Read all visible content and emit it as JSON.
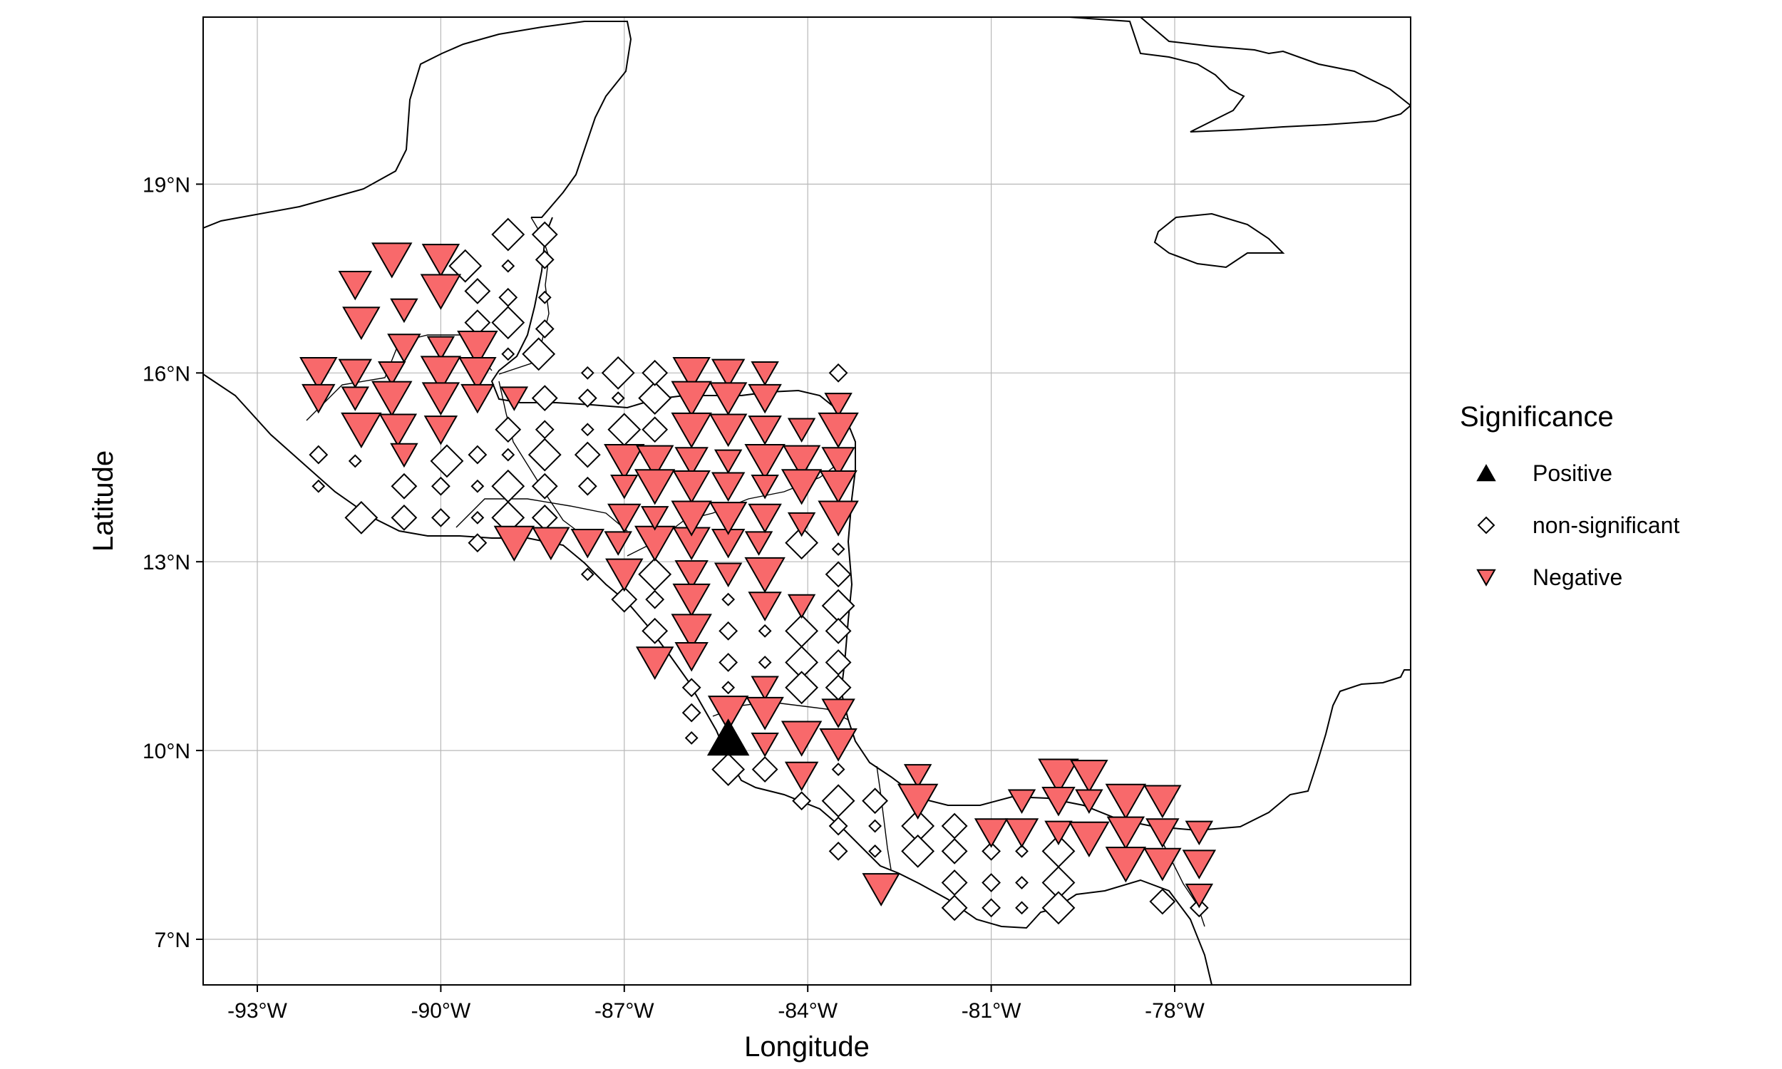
{
  "chart_data": {
    "type": "scatter",
    "map": "Central America station trends",
    "xlabel": "Longitude",
    "ylabel": "Latitude",
    "xlim": [
      -94.0,
      -74.0
    ],
    "ylim": [
      6.3,
      21.7
    ],
    "x_ticks": [
      -93,
      -90,
      -87,
      -84,
      -81,
      -78
    ],
    "x_tick_labels": [
      "-93°W",
      "-90°W",
      "-87°W",
      "-84°W",
      "-81°W",
      "-78°W"
    ],
    "y_ticks": [
      7,
      10,
      13,
      16,
      19
    ],
    "y_tick_labels": [
      "7°N",
      "10°N",
      "13°N",
      "16°N",
      "19°N"
    ],
    "grid": true,
    "legend": {
      "title": "Significance",
      "placement": "right",
      "entries": [
        {
          "key": "positive",
          "label": "Positive",
          "shape": "triangle-up",
          "color": "#000000"
        },
        {
          "key": "nonsig",
          "label": "non-significant",
          "shape": "diamond",
          "color": "#ffffff"
        },
        {
          "key": "negative",
          "label": "Negative",
          "shape": "triangle-down",
          "color": "#F8696B"
        }
      ]
    },
    "colors": {
      "negative": "#F8696B",
      "positive": "#000000",
      "nonsig": "#ffffff",
      "outline": "#000000"
    },
    "series": [
      {
        "name": "Positive",
        "points": [
          [
            -85.3,
            10.2
          ]
        ]
      },
      {
        "name": "Negative",
        "points": [
          [
            -90.8,
            17.8
          ],
          [
            -90.0,
            17.8
          ],
          [
            -91.4,
            17.4
          ],
          [
            -90.6,
            17.0
          ],
          [
            -90.0,
            17.3
          ],
          [
            -91.3,
            16.8
          ],
          [
            -90.6,
            16.4
          ],
          [
            -90.0,
            16.4
          ],
          [
            -89.4,
            16.4
          ],
          [
            -92.0,
            16.0
          ],
          [
            -91.4,
            16.0
          ],
          [
            -90.8,
            16.0
          ],
          [
            -90.0,
            16.0
          ],
          [
            -89.4,
            16.0
          ],
          [
            -92.0,
            15.6
          ],
          [
            -91.4,
            15.6
          ],
          [
            -90.8,
            15.6
          ],
          [
            -90.0,
            15.6
          ],
          [
            -89.4,
            15.6
          ],
          [
            -88.8,
            15.6
          ],
          [
            -91.3,
            15.1
          ],
          [
            -90.7,
            15.1
          ],
          [
            -90.0,
            15.1
          ],
          [
            -90.6,
            14.7
          ],
          [
            -88.8,
            13.3
          ],
          [
            -88.2,
            13.3
          ],
          [
            -87.6,
            13.3
          ],
          [
            -87.1,
            13.3
          ],
          [
            -86.5,
            13.3
          ],
          [
            -85.9,
            13.3
          ],
          [
            -85.3,
            13.3
          ],
          [
            -84.8,
            13.3
          ],
          [
            -87.0,
            14.6
          ],
          [
            -86.5,
            14.6
          ],
          [
            -85.9,
            14.6
          ],
          [
            -85.3,
            14.6
          ],
          [
            -84.7,
            14.6
          ],
          [
            -84.1,
            14.6
          ],
          [
            -83.5,
            14.6
          ],
          [
            -87.0,
            14.2
          ],
          [
            -86.5,
            14.2
          ],
          [
            -85.9,
            14.2
          ],
          [
            -85.3,
            14.2
          ],
          [
            -84.7,
            14.2
          ],
          [
            -84.1,
            14.2
          ],
          [
            -83.5,
            14.2
          ],
          [
            -87.0,
            13.7
          ],
          [
            -86.5,
            13.7
          ],
          [
            -85.9,
            13.7
          ],
          [
            -85.3,
            13.7
          ],
          [
            -84.7,
            13.7
          ],
          [
            -84.1,
            13.6
          ],
          [
            -83.5,
            13.7
          ],
          [
            -85.9,
            16.0
          ],
          [
            -85.3,
            16.0
          ],
          [
            -84.7,
            16.0
          ],
          [
            -85.9,
            15.6
          ],
          [
            -85.3,
            15.6
          ],
          [
            -84.7,
            15.6
          ],
          [
            -83.5,
            15.5
          ],
          [
            -85.9,
            15.1
          ],
          [
            -85.3,
            15.1
          ],
          [
            -84.7,
            15.1
          ],
          [
            -84.1,
            15.1
          ],
          [
            -83.5,
            15.1
          ],
          [
            -87.0,
            12.8
          ],
          [
            -85.9,
            12.8
          ],
          [
            -85.3,
            12.8
          ],
          [
            -84.7,
            12.8
          ],
          [
            -85.9,
            12.4
          ],
          [
            -84.7,
            12.3
          ],
          [
            -84.1,
            12.3
          ],
          [
            -85.9,
            11.9
          ],
          [
            -86.5,
            11.4
          ],
          [
            -85.9,
            11.5
          ],
          [
            -84.7,
            11.0
          ],
          [
            -85.3,
            10.6
          ],
          [
            -84.7,
            10.6
          ],
          [
            -83.5,
            10.6
          ],
          [
            -84.7,
            10.1
          ],
          [
            -84.1,
            10.2
          ],
          [
            -83.5,
            10.1
          ],
          [
            -84.1,
            9.6
          ],
          [
            -82.2,
            9.6
          ],
          [
            -82.2,
            9.2
          ],
          [
            -82.8,
            7.8
          ],
          [
            -81.0,
            8.7
          ],
          [
            -80.5,
            9.2
          ],
          [
            -79.9,
            9.6
          ],
          [
            -79.4,
            9.6
          ],
          [
            -79.9,
            9.2
          ],
          [
            -79.4,
            9.2
          ],
          [
            -78.8,
            9.2
          ],
          [
            -78.2,
            9.2
          ],
          [
            -80.5,
            8.7
          ],
          [
            -79.9,
            8.7
          ],
          [
            -79.4,
            8.6
          ],
          [
            -78.8,
            8.7
          ],
          [
            -78.2,
            8.7
          ],
          [
            -77.6,
            8.7
          ],
          [
            -78.8,
            8.2
          ],
          [
            -78.2,
            8.2
          ],
          [
            -77.6,
            8.2
          ],
          [
            -77.6,
            7.7
          ]
        ]
      },
      {
        "name": "non-significant",
        "points": [
          [
            -88.9,
            18.2
          ],
          [
            -88.3,
            18.2
          ],
          [
            -88.3,
            17.8
          ],
          [
            -88.9,
            17.7
          ],
          [
            -89.6,
            17.7
          ],
          [
            -89.4,
            17.3
          ],
          [
            -88.9,
            17.2
          ],
          [
            -88.3,
            17.2
          ],
          [
            -88.9,
            16.8
          ],
          [
            -89.4,
            16.8
          ],
          [
            -88.3,
            16.7
          ],
          [
            -88.9,
            16.3
          ],
          [
            -88.4,
            16.3
          ],
          [
            -88.3,
            15.6
          ],
          [
            -87.6,
            15.6
          ],
          [
            -87.1,
            15.6
          ],
          [
            -86.5,
            15.6
          ],
          [
            -88.9,
            15.1
          ],
          [
            -88.3,
            15.1
          ],
          [
            -87.6,
            15.1
          ],
          [
            -87.0,
            15.1
          ],
          [
            -86.5,
            15.1
          ],
          [
            -89.4,
            14.7
          ],
          [
            -88.9,
            14.7
          ],
          [
            -88.3,
            14.7
          ],
          [
            -87.6,
            14.7
          ],
          [
            -92.0,
            14.7
          ],
          [
            -91.4,
            14.6
          ],
          [
            -89.9,
            14.6
          ],
          [
            -90.6,
            14.2
          ],
          [
            -90.0,
            14.2
          ],
          [
            -89.4,
            14.2
          ],
          [
            -88.9,
            14.2
          ],
          [
            -88.3,
            14.2
          ],
          [
            -87.6,
            14.2
          ],
          [
            -92.0,
            14.2
          ],
          [
            -91.3,
            13.7
          ],
          [
            -90.6,
            13.7
          ],
          [
            -90.0,
            13.7
          ],
          [
            -89.4,
            13.7
          ],
          [
            -88.9,
            13.7
          ],
          [
            -88.3,
            13.7
          ],
          [
            -89.4,
            13.3
          ],
          [
            -87.6,
            12.8
          ],
          [
            -86.5,
            12.8
          ],
          [
            -87.0,
            12.4
          ],
          [
            -86.5,
            12.4
          ],
          [
            -85.3,
            12.4
          ],
          [
            -83.5,
            12.3
          ],
          [
            -86.5,
            11.9
          ],
          [
            -85.3,
            11.9
          ],
          [
            -84.7,
            11.9
          ],
          [
            -84.1,
            11.9
          ],
          [
            -83.5,
            11.9
          ],
          [
            -85.3,
            11.4
          ],
          [
            -84.7,
            11.4
          ],
          [
            -84.1,
            11.4
          ],
          [
            -83.5,
            11.4
          ],
          [
            -85.9,
            11.0
          ],
          [
            -85.3,
            11.0
          ],
          [
            -84.1,
            11.0
          ],
          [
            -83.5,
            11.0
          ],
          [
            -85.9,
            10.6
          ],
          [
            -85.9,
            10.2
          ],
          [
            -85.3,
            9.7
          ],
          [
            -84.7,
            9.7
          ],
          [
            -84.1,
            9.2
          ],
          [
            -83.5,
            9.7
          ],
          [
            -83.5,
            9.2
          ],
          [
            -82.9,
            9.2
          ],
          [
            -83.5,
            8.8
          ],
          [
            -82.9,
            8.8
          ],
          [
            -82.2,
            8.8
          ],
          [
            -81.6,
            8.8
          ],
          [
            -83.5,
            8.4
          ],
          [
            -82.9,
            8.4
          ],
          [
            -82.2,
            8.4
          ],
          [
            -81.6,
            8.4
          ],
          [
            -81.0,
            8.4
          ],
          [
            -80.5,
            8.4
          ],
          [
            -79.9,
            8.4
          ],
          [
            -81.6,
            7.9
          ],
          [
            -81.0,
            7.9
          ],
          [
            -80.5,
            7.9
          ],
          [
            -79.9,
            7.9
          ],
          [
            -81.6,
            7.5
          ],
          [
            -81.0,
            7.5
          ],
          [
            -80.5,
            7.5
          ],
          [
            -79.9,
            7.5
          ],
          [
            -78.2,
            7.6
          ],
          [
            -77.6,
            7.5
          ],
          [
            -87.6,
            16.0
          ],
          [
            -87.1,
            16.0
          ],
          [
            -86.5,
            16.0
          ],
          [
            -83.5,
            16.0
          ],
          [
            -83.5,
            13.2
          ],
          [
            -84.1,
            13.3
          ],
          [
            -83.5,
            12.8
          ]
        ]
      }
    ]
  }
}
